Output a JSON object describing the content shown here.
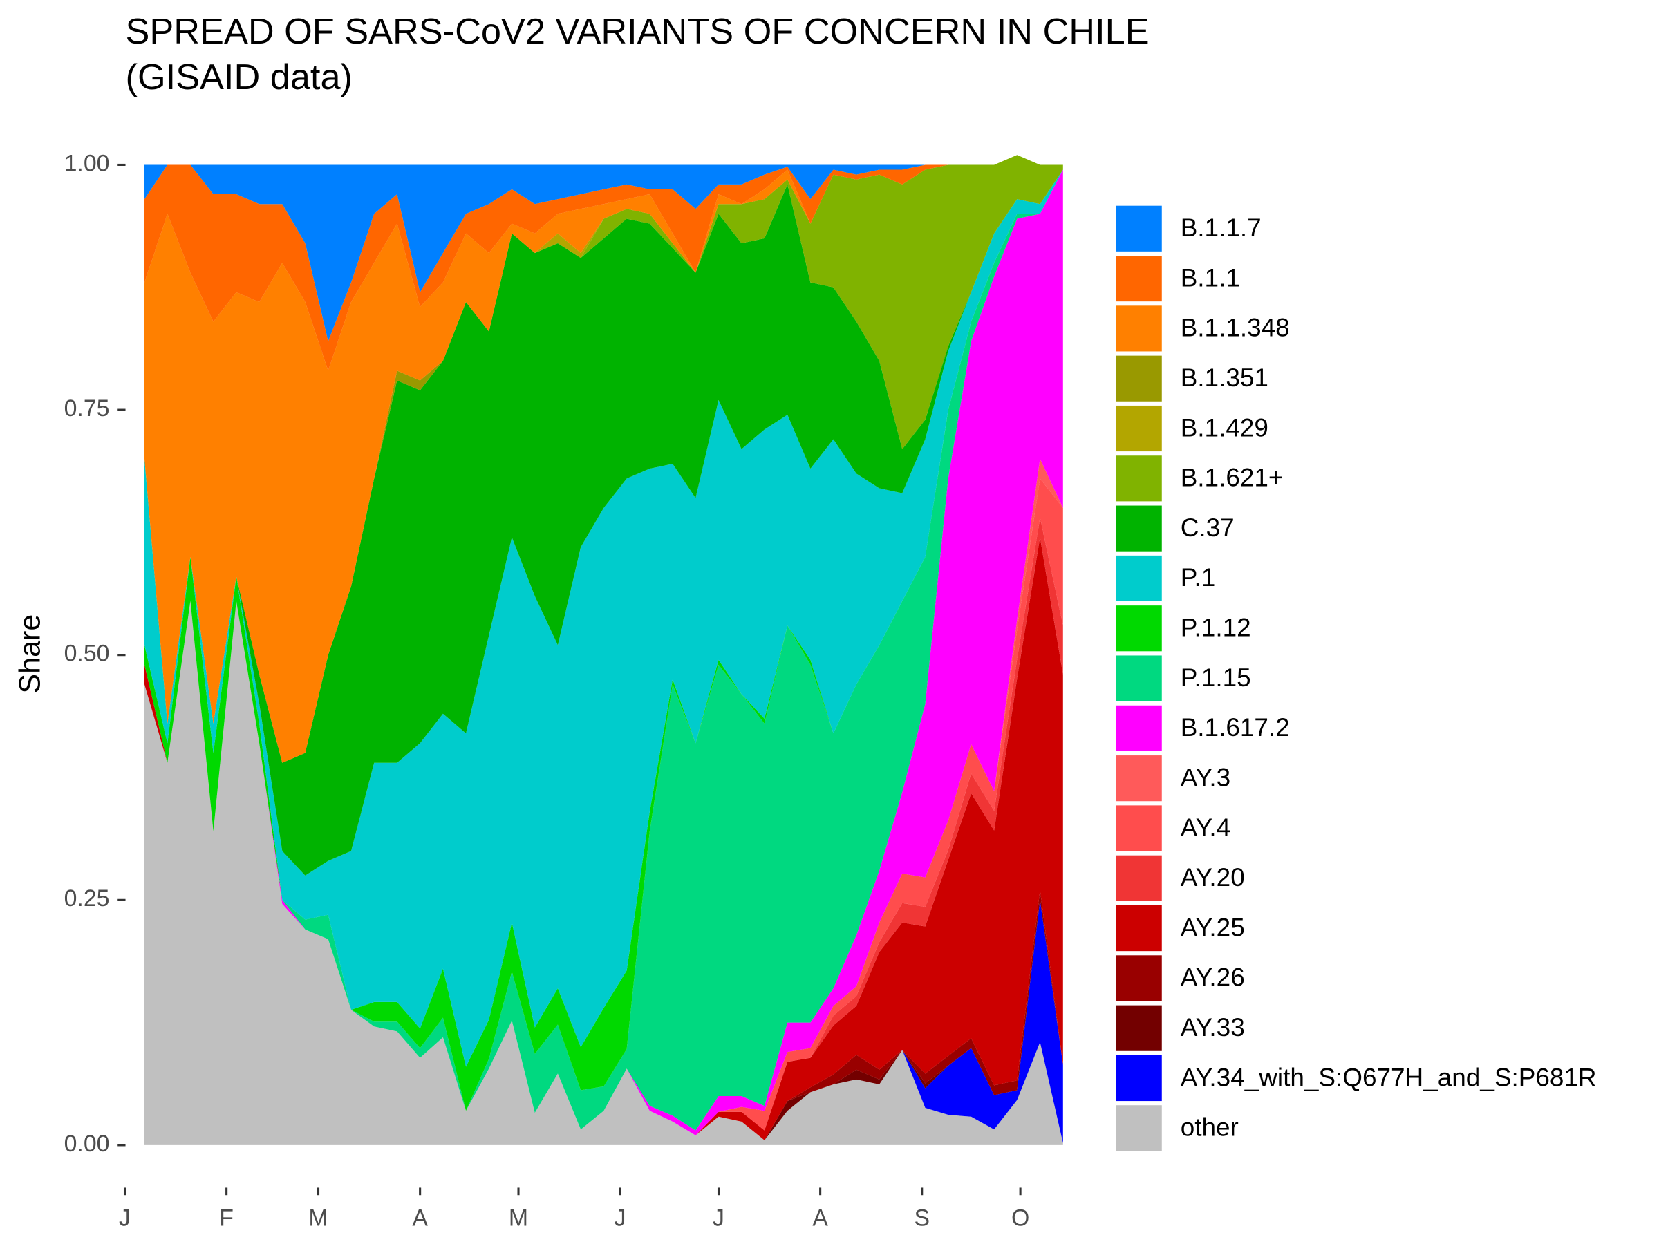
{
  "chart_data": {
    "type": "stacked_area",
    "title": "SPREAD OF SARS-CoV2 VARIANTS OF CONCERN IN CHILE",
    "subtitle": "(GISAID data)",
    "y_label": "Share",
    "x": [
      7,
      14,
      21,
      28,
      35,
      42,
      49,
      56,
      63,
      70,
      77,
      84,
      91,
      98,
      105,
      112,
      119,
      126,
      133,
      140,
      147,
      154,
      161,
      168,
      175,
      182,
      189,
      196,
      203,
      210,
      217,
      224,
      231,
      238,
      245,
      252,
      259,
      266,
      273,
      280,
      287
    ],
    "xlim": [
      -3,
      292
    ],
    "xticks": [
      {
        "value": 1,
        "label": "J"
      },
      {
        "value": 32,
        "label": "F"
      },
      {
        "value": 60,
        "label": "M"
      },
      {
        "value": 91,
        "label": "A"
      },
      {
        "value": 121,
        "label": "M"
      },
      {
        "value": 152,
        "label": "J"
      },
      {
        "value": 182,
        "label": "J"
      },
      {
        "value": 213,
        "label": "A"
      },
      {
        "value": 244,
        "label": "S"
      },
      {
        "value": 274,
        "label": "O"
      }
    ],
    "ylim": [
      0,
      1
    ],
    "yticks": [
      {
        "value": 0,
        "label": "0.00"
      },
      {
        "value": 0.25,
        "label": "0.25"
      },
      {
        "value": 0.5,
        "label": "0.50"
      },
      {
        "value": 0.75,
        "label": "0.75"
      },
      {
        "value": 1,
        "label": "1.00"
      }
    ],
    "series": [
      {
        "name": "B.1.1.7",
        "color": "#0080ff",
        "values": [
          0.035,
          0,
          0,
          0.03,
          0.03,
          0.04,
          0.04,
          0.08,
          0.18,
          0.12,
          0.05,
          0.03,
          0.13,
          0.09,
          0.05,
          0.04,
          0.025,
          0.04,
          0.035,
          0.03,
          0.025,
          0.02,
          0.025,
          0.025,
          0.045,
          0.02,
          0.02,
          0.01,
          0.002,
          0.035,
          0.005,
          0.01,
          0.005,
          0.005,
          0,
          0,
          0,
          0,
          0,
          0,
          0
        ]
      },
      {
        "name": "B.1.1",
        "color": "#ff6600",
        "values": [
          0.085,
          0.05,
          0.11,
          0.13,
          0.1,
          0.1,
          0.06,
          0.06,
          0.03,
          0.02,
          0.05,
          0.03,
          0.015,
          0.03,
          0.02,
          0.05,
          0.035,
          0.03,
          0.015,
          0.015,
          0.015,
          0.015,
          0.005,
          0.045,
          0.065,
          0.01,
          0.02,
          0.015,
          0.003,
          0.025,
          0.005,
          0.005,
          0.005,
          0.015,
          0.005,
          0,
          0,
          0,
          0,
          0,
          0
        ]
      },
      {
        "name": "B.1.1.348",
        "color": "#ff8000",
        "values": [
          0.18,
          0.52,
          0.29,
          0.41,
          0.29,
          0.38,
          0.51,
          0.46,
          0.29,
          0.29,
          0.22,
          0.15,
          0.075,
          0.08,
          0.07,
          0.08,
          0.01,
          0.02,
          0.02,
          0.045,
          0.015,
          0.01,
          0.02,
          0.01,
          0,
          0.01,
          0,
          0.01,
          0.01,
          0,
          0,
          0,
          0,
          0,
          0,
          0,
          0,
          0,
          0,
          0,
          0
        ]
      },
      {
        "name": "B.1.351",
        "color": "#999900",
        "values": [
          0,
          0,
          0,
          0,
          0,
          0,
          0,
          0,
          0,
          0,
          0,
          0.01,
          0.01,
          0,
          0,
          0,
          0,
          0,
          0,
          0,
          0,
          0,
          0,
          0,
          0,
          0,
          0,
          0,
          0,
          0,
          0,
          0,
          0,
          0,
          0,
          0,
          0,
          0,
          0,
          0,
          0
        ]
      },
      {
        "name": "B.1.429",
        "color": "#b3a600",
        "values": [
          0,
          0,
          0,
          0,
          0,
          0,
          0,
          0,
          0,
          0,
          0,
          0,
          0,
          0,
          0,
          0,
          0,
          0,
          0.01,
          0.005,
          0,
          0,
          0,
          0,
          0,
          0,
          0,
          0,
          0,
          0,
          0,
          0,
          0,
          0,
          0,
          0,
          0,
          0,
          0,
          0,
          0
        ]
      },
      {
        "name": "B.1.621+",
        "color": "#80b300",
        "values": [
          0,
          0,
          0,
          0,
          0,
          0,
          0,
          0,
          0,
          0,
          0,
          0,
          0,
          0,
          0,
          0,
          0,
          0,
          0,
          0,
          0.02,
          0.01,
          0.01,
          0.005,
          0,
          0.01,
          0.04,
          0.04,
          0.005,
          0.06,
          0.115,
          0.145,
          0.19,
          0.27,
          0.255,
          0.185,
          0.13,
          0.07,
          0.045,
          0.04,
          0.005
        ]
      },
      {
        "name": "C.37",
        "color": "#00b300",
        "values": [
          0,
          0,
          0,
          0,
          0,
          0.03,
          0.09,
          0.125,
          0.21,
          0.27,
          0.29,
          0.39,
          0.36,
          0.36,
          0.44,
          0.31,
          0.31,
          0.35,
          0.41,
          0.295,
          0.275,
          0.265,
          0.25,
          0.22,
          0.23,
          0.19,
          0.21,
          0.195,
          0.235,
          0.19,
          0.155,
          0.155,
          0.13,
          0.045,
          0.02,
          0.005,
          0,
          0,
          0,
          0,
          0
        ]
      },
      {
        "name": "P.1",
        "color": "#00cccc",
        "values": [
          0.19,
          0.02,
          0,
          0.03,
          0,
          0.02,
          0.05,
          0.045,
          0.055,
          0.162,
          0.244,
          0.244,
          0.291,
          0.26,
          0.34,
          0.392,
          0.393,
          0.44,
          0.35,
          0.51,
          0.51,
          0.502,
          0.35,
          0.22,
          0.25,
          0.265,
          0.25,
          0.295,
          0.215,
          0.195,
          0.3,
          0.215,
          0.16,
          0.11,
          0.12,
          0.06,
          0.03,
          0.03,
          0.015,
          0.01,
          0
        ]
      },
      {
        "name": "P.1.12",
        "color": "#00d900",
        "values": [
          0.02,
          0.02,
          0.045,
          0.08,
          0.025,
          0.02,
          0,
          0,
          0,
          0,
          0.02,
          0.02,
          0.02,
          0.05,
          0.045,
          0.04,
          0.05,
          0.027,
          0.037,
          0.044,
          0.08,
          0.08,
          0.02,
          0.005,
          0,
          0.005,
          0,
          0.005,
          0,
          0.005,
          0,
          0,
          0,
          0,
          0,
          0,
          0,
          0,
          0,
          0,
          0
        ]
      },
      {
        "name": "P.1.15",
        "color": "#00d980",
        "values": [
          0,
          0,
          0,
          0,
          0,
          0,
          0,
          0.01,
          0.025,
          0,
          0.005,
          0.01,
          0.01,
          0.02,
          0,
          0.01,
          0.05,
          0.06,
          0.05,
          0.04,
          0.025,
          0.02,
          0.28,
          0.44,
          0.395,
          0.44,
          0.41,
          0.39,
          0.405,
          0.365,
          0.26,
          0.256,
          0.23,
          0.195,
          0.15,
          0.07,
          0.02,
          0.014,
          0.005,
          0,
          0
        ]
      },
      {
        "name": "B.1.617.2",
        "color": "#ff00ff",
        "values": [
          0,
          0,
          0,
          0,
          0,
          0,
          0.004,
          0,
          0,
          0,
          0,
          0,
          0,
          0,
          0,
          0,
          0,
          0,
          0,
          0,
          0,
          0,
          0.005,
          0.006,
          0.005,
          0.016,
          0.011,
          0.005,
          0.03,
          0.026,
          0.018,
          0.052,
          0.053,
          0.083,
          0.177,
          0.349,
          0.411,
          0.525,
          0.409,
          0.25,
          0.345
        ]
      },
      {
        "name": "AY.3",
        "color": "#ff5a5a",
        "values": [
          0,
          0,
          0,
          0,
          0,
          0,
          0,
          0,
          0,
          0,
          0,
          0,
          0,
          0,
          0,
          0,
          0,
          0,
          0,
          0,
          0,
          0,
          0,
          0,
          0,
          0,
          0,
          0,
          0,
          0,
          0,
          0,
          0,
          0,
          0,
          0,
          0,
          0,
          0.01,
          0.02,
          0
        ]
      },
      {
        "name": "AY.4",
        "color": "#ff4d4d",
        "values": [
          0,
          0,
          0,
          0,
          0,
          0,
          0,
          0,
          0,
          0,
          0,
          0,
          0,
          0,
          0,
          0,
          0,
          0,
          0,
          0,
          0,
          0,
          0,
          0,
          0,
          0,
          0.005,
          0.02,
          0.01,
          0.01,
          0.01,
          0.01,
          0.02,
          0.03,
          0.03,
          0.03,
          0.03,
          0.02,
          0.03,
          0.04,
          0.12
        ]
      },
      {
        "name": "AY.20",
        "color": "#f03535",
        "values": [
          0,
          0,
          0,
          0,
          0,
          0,
          0,
          0,
          0,
          0,
          0,
          0,
          0,
          0,
          0,
          0,
          0,
          0,
          0,
          0,
          0,
          0,
          0,
          0,
          0,
          0,
          0,
          0,
          0,
          0,
          0.01,
          0.01,
          0.01,
          0.02,
          0.02,
          0.01,
          0.02,
          0.02,
          0.02,
          0.02,
          0.05
        ]
      },
      {
        "name": "AY.25",
        "color": "#cc0000",
        "values": [
          0.02,
          0,
          0,
          0,
          0,
          0,
          0,
          0,
          0,
          0,
          0,
          0,
          0,
          0,
          0,
          0,
          0,
          0,
          0,
          0,
          0,
          0,
          0,
          0,
          0,
          0.005,
          0.01,
          0.01,
          0.04,
          0.03,
          0.05,
          0.05,
          0.12,
          0.13,
          0.15,
          0.2,
          0.25,
          0.26,
          0.41,
          0.36,
          0.398
        ]
      },
      {
        "name": "AY.26",
        "color": "#990000",
        "values": [
          0,
          0,
          0,
          0,
          0,
          0,
          0,
          0,
          0,
          0,
          0,
          0,
          0,
          0,
          0,
          0,
          0,
          0,
          0,
          0,
          0,
          0,
          0,
          0,
          0,
          0,
          0,
          0,
          0,
          0.005,
          0.01,
          0.015,
          0.01,
          0,
          0.01,
          0.01,
          0.01,
          0.01,
          0.01,
          0.01,
          0
        ]
      },
      {
        "name": "AY.33",
        "color": "#730000",
        "values": [
          0,
          0,
          0,
          0,
          0,
          0,
          0,
          0,
          0,
          0,
          0,
          0,
          0,
          0,
          0,
          0,
          0,
          0,
          0,
          0,
          0,
          0,
          0,
          0,
          0,
          0,
          0,
          0,
          0.01,
          0,
          0,
          0.01,
          0.005,
          0,
          0.005,
          0,
          0,
          0,
          0,
          0,
          0
        ]
      },
      {
        "name": "AY.34_with_S:Q677H_and_S:P681R",
        "color": "#0000ff",
        "values": [
          0,
          0,
          0,
          0,
          0,
          0,
          0,
          0,
          0,
          0,
          0,
          0,
          0,
          0,
          0,
          0,
          0,
          0,
          0,
          0,
          0,
          0,
          0,
          0,
          0,
          0,
          0,
          0,
          0,
          0,
          0,
          0,
          0,
          0,
          0.02,
          0.05,
          0.07,
          0.035,
          0.01,
          0.145,
          0.08
        ]
      },
      {
        "name": "other",
        "color": "#c0c0c0",
        "values": [
          0.47,
          0.39,
          0.555,
          0.32,
          0.555,
          0.41,
          0.246,
          0.22,
          0.21,
          0.138,
          0.121,
          0.116,
          0.089,
          0.11,
          0.035,
          0.078,
          0.127,
          0.033,
          0.073,
          0.016,
          0.035,
          0.078,
          0.035,
          0.024,
          0.01,
          0.029,
          0.024,
          0.005,
          0.035,
          0.054,
          0.062,
          0.067,
          0.062,
          0.097,
          0.038,
          0.031,
          0.029,
          0.016,
          0.046,
          0.105,
          0.002
        ]
      }
    ]
  }
}
